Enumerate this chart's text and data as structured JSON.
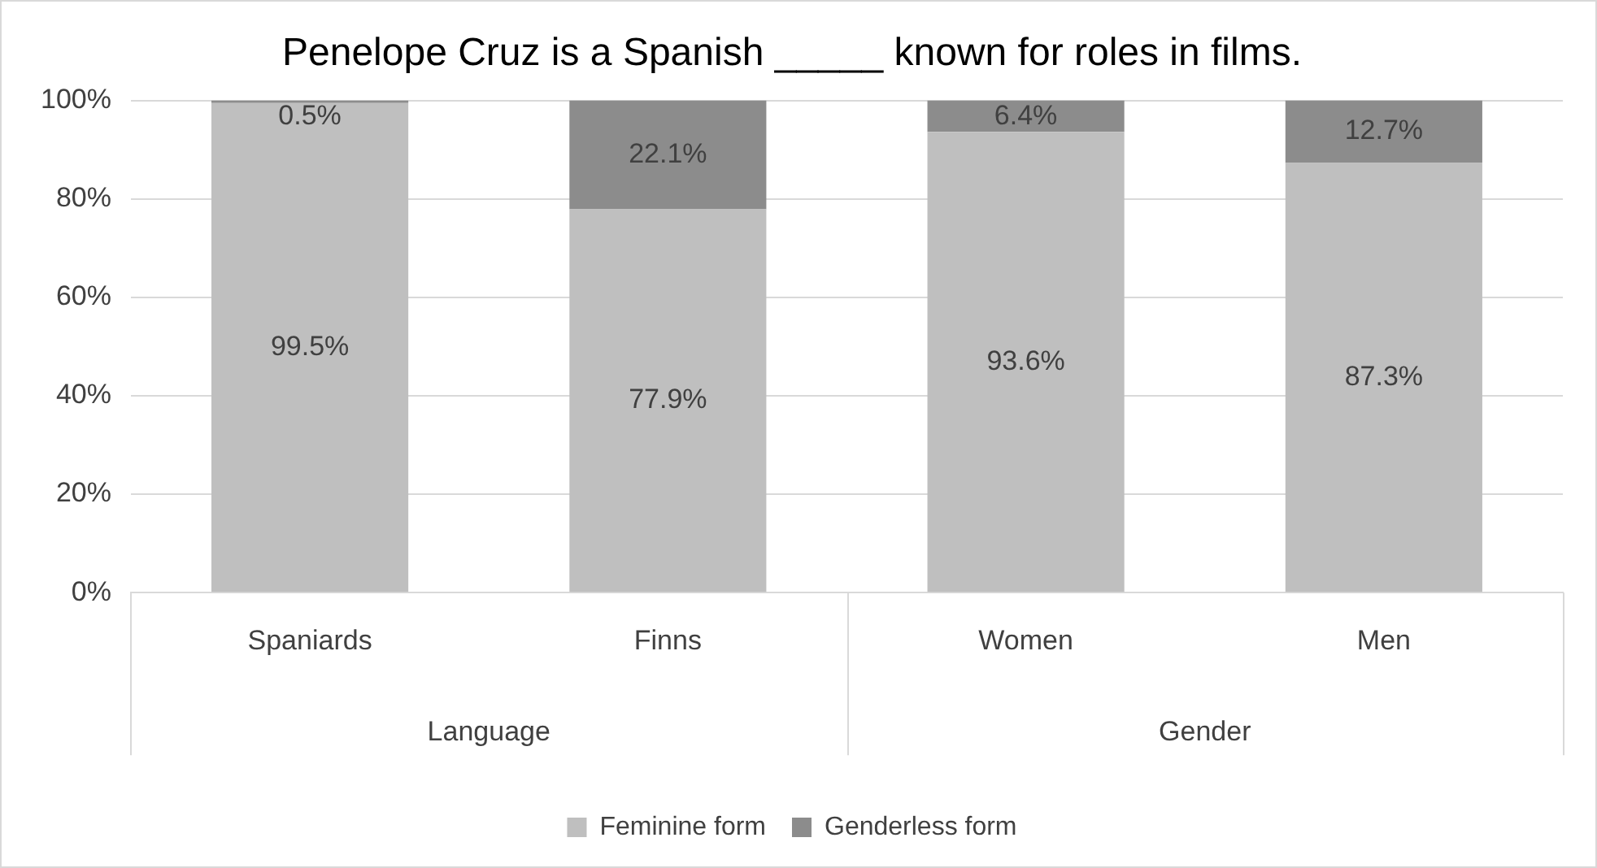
{
  "chart_data": {
    "type": "bar",
    "title": "Penelope Cruz is a Spanish _____ known for roles in films.",
    "categories": [
      "Spaniards",
      "Finns",
      "Women",
      "Men"
    ],
    "stacked": true,
    "ylim": [
      0,
      100
    ],
    "yticks": [
      {
        "value": 0,
        "label": "0%"
      },
      {
        "value": 20,
        "label": "20%"
      },
      {
        "value": 40,
        "label": "40%"
      },
      {
        "value": 60,
        "label": "60%"
      },
      {
        "value": 80,
        "label": "80%"
      },
      {
        "value": 100,
        "label": "100%"
      }
    ],
    "grid": "y",
    "legend": "bottom",
    "series": [
      {
        "name": "Feminine form",
        "color": "#bfbfbf",
        "values": [
          99.5,
          77.9,
          93.6,
          87.3
        ],
        "value_labels": [
          "99.5%",
          "77.9%",
          "93.6%",
          "87.3%"
        ]
      },
      {
        "name": "Genderless form",
        "color": "#8c8c8c",
        "values": [
          0.5,
          22.1,
          6.4,
          12.7
        ],
        "value_labels": [
          "0.5%",
          "22.1%",
          "6.4%",
          "12.7%"
        ]
      }
    ],
    "annotations": [
      "Language",
      "Gender"
    ]
  }
}
